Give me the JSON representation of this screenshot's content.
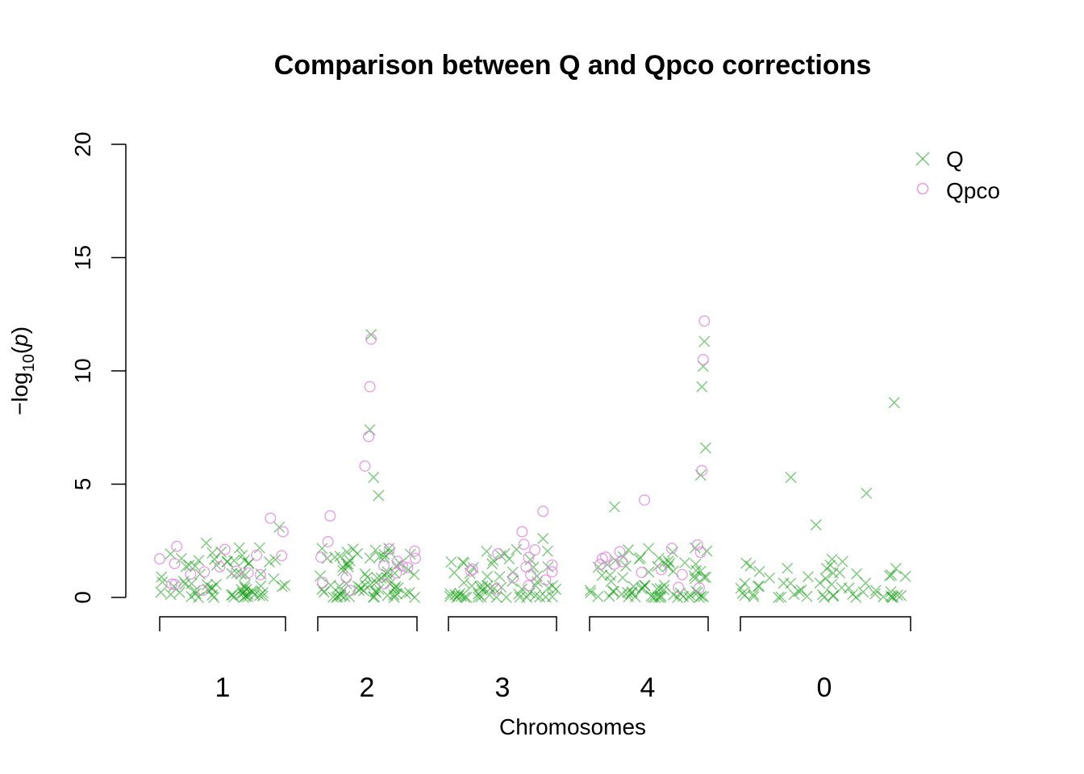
{
  "chart_data": {
    "type": "scatter",
    "title": "Comparison between Q and Qpco corrections",
    "xlabel": "Chromosomes",
    "ylabel": {
      "base": "−log",
      "subscript": "10",
      "open": "(",
      "var": "p",
      "close": ")"
    },
    "ylim": [
      0,
      20
    ],
    "yticks": [
      0,
      5,
      10,
      15,
      20
    ],
    "grid": false,
    "legend_position": "top-right",
    "chromosomes": [
      {
        "label": "1",
        "x_range": [
          0,
          100
        ]
      },
      {
        "label": "2",
        "x_range": [
          0,
          80
        ]
      },
      {
        "label": "3",
        "x_range": [
          0,
          88
        ]
      },
      {
        "label": "4",
        "x_range": [
          0,
          95
        ]
      },
      {
        "label": "0",
        "x_range": [
          0,
          135
        ]
      }
    ],
    "series": [
      {
        "name": "Q",
        "marker": "x",
        "color": "#0a9a0a",
        "peaks": [
          {
            "chr": "1",
            "pos": 95,
            "y": 3.1
          },
          {
            "chr": "1",
            "pos": 37,
            "y": 2.4
          },
          {
            "chr": "2",
            "pos": 43,
            "y": 11.6
          },
          {
            "chr": "2",
            "pos": 42,
            "y": 7.4
          },
          {
            "chr": "2",
            "pos": 45,
            "y": 5.3
          },
          {
            "chr": "2",
            "pos": 49,
            "y": 4.5
          },
          {
            "chr": "3",
            "pos": 77,
            "y": 2.6
          },
          {
            "chr": "4",
            "pos": 20,
            "y": 4.0
          },
          {
            "chr": "4",
            "pos": 92,
            "y": 11.3
          },
          {
            "chr": "4",
            "pos": 91,
            "y": 10.2
          },
          {
            "chr": "4",
            "pos": 90,
            "y": 9.3
          },
          {
            "chr": "4",
            "pos": 93,
            "y": 6.6
          },
          {
            "chr": "4",
            "pos": 89,
            "y": 5.4
          },
          {
            "chr": "0",
            "pos": 40,
            "y": 5.3
          },
          {
            "chr": "0",
            "pos": 60,
            "y": 3.2
          },
          {
            "chr": "0",
            "pos": 100,
            "y": 4.6
          },
          {
            "chr": "0",
            "pos": 122,
            "y": 8.6
          }
        ]
      },
      {
        "name": "Qpco",
        "marker": "o",
        "color": "#dd88dd",
        "peaks": [
          {
            "chr": "1",
            "pos": 0,
            "y": 1.7
          },
          {
            "chr": "1",
            "pos": 88,
            "y": 3.5
          },
          {
            "chr": "1",
            "pos": 98,
            "y": 2.9
          },
          {
            "chr": "2",
            "pos": 43,
            "y": 11.4
          },
          {
            "chr": "2",
            "pos": 42,
            "y": 9.3
          },
          {
            "chr": "2",
            "pos": 41,
            "y": 7.1
          },
          {
            "chr": "2",
            "pos": 38,
            "y": 5.8
          },
          {
            "chr": "2",
            "pos": 10,
            "y": 3.6
          },
          {
            "chr": "3",
            "pos": 77,
            "y": 3.8
          },
          {
            "chr": "3",
            "pos": 60,
            "y": 2.9
          },
          {
            "chr": "4",
            "pos": 44,
            "y": 4.3
          },
          {
            "chr": "4",
            "pos": 92,
            "y": 12.2
          },
          {
            "chr": "4",
            "pos": 91,
            "y": 10.5
          },
          {
            "chr": "4",
            "pos": 90,
            "y": 5.6
          }
        ]
      }
    ]
  }
}
